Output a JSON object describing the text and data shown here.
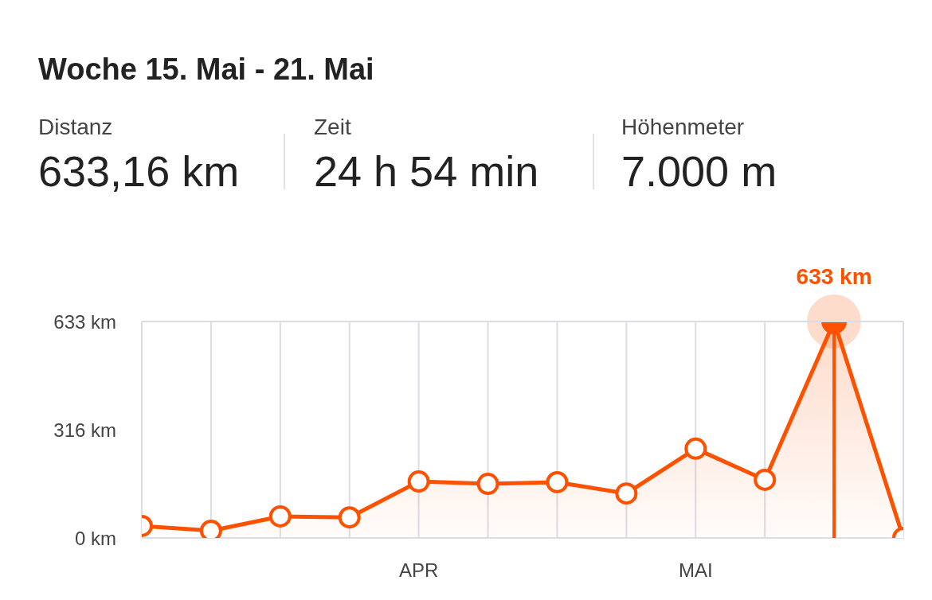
{
  "chart_data": {
    "type": "area",
    "title": "Woche 15. Mai - 21. Mai",
    "annotations": [
      "Distanz",
      "633,16 km",
      "Zeit",
      "24 h 54 min",
      "Höhenmeter",
      "7.000 m",
      {
        "text": "633 km",
        "y": 633
      }
    ],
    "categories": [
      null,
      null,
      null,
      null,
      "APR",
      null,
      null,
      null,
      "MAI",
      null,
      null,
      null
    ],
    "values": [
      35,
      21,
      63,
      60,
      165,
      158,
      163,
      130,
      261,
      170,
      633,
      0
    ],
    "color": "#fc5200",
    "ylim": [
      0,
      633
    ],
    "yticks": [
      {
        "value": 0,
        "label": "0 km"
      },
      {
        "value": 316,
        "label": "316 km"
      },
      {
        "value": 633,
        "label": "633 km"
      }
    ],
    "grid": "x",
    "marker": "circle"
  }
}
